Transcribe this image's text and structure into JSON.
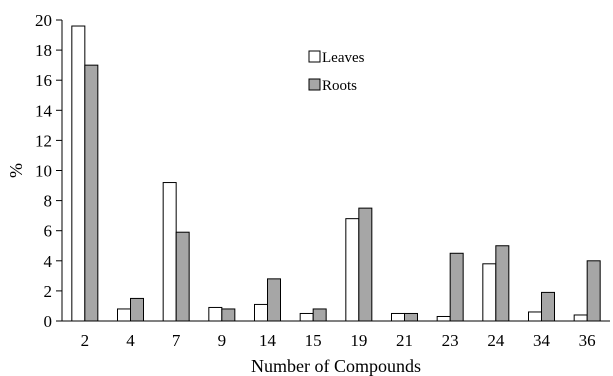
{
  "chart_data": {
    "type": "bar",
    "xlabel": "Number of Compounds",
    "ylabel": "%",
    "ylim": [
      0,
      20
    ],
    "yticks": [
      0,
      2,
      4,
      6,
      8,
      10,
      12,
      14,
      16,
      18,
      20
    ],
    "grid": false,
    "legend_position": "top-center",
    "categories": [
      "2",
      "4",
      "7",
      "9",
      "14",
      "15",
      "19",
      "21",
      "23",
      "24",
      "34",
      "36"
    ],
    "series": [
      {
        "name": "Leaves",
        "color": "#ffffff",
        "values": [
          19.6,
          0.8,
          9.2,
          0.9,
          1.1,
          0.5,
          6.8,
          0.5,
          0.3,
          3.8,
          0.6,
          0.4
        ]
      },
      {
        "name": "Roots",
        "color": "#a6a6a6",
        "values": [
          17.0,
          1.5,
          5.9,
          0.8,
          2.8,
          0.8,
          7.5,
          0.5,
          4.5,
          5.0,
          1.9,
          4.0
        ]
      }
    ]
  }
}
